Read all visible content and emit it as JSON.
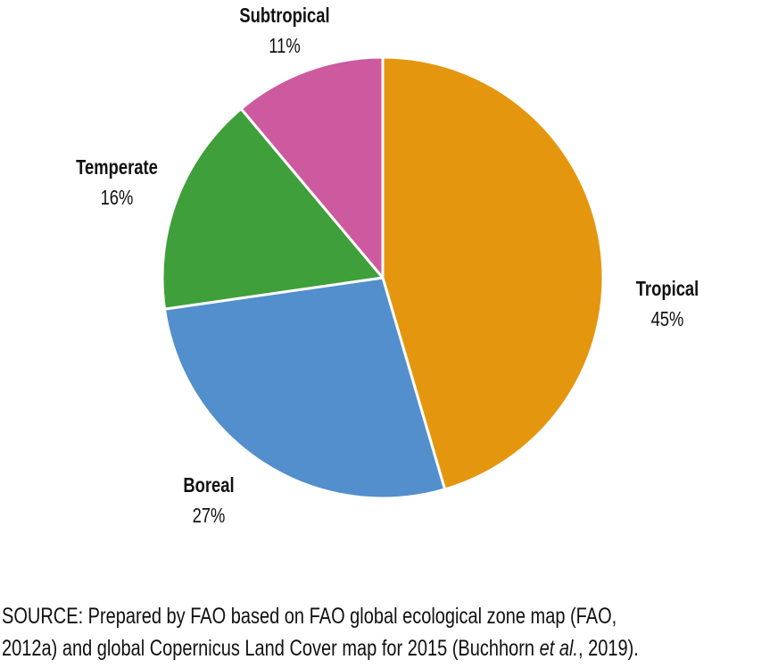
{
  "chart_data": {
    "type": "pie",
    "title": "",
    "start": "top",
    "direction": "clockwise",
    "slices": [
      {
        "label": "Tropical",
        "value": 45,
        "display": "45%",
        "color": "#E5960F"
      },
      {
        "label": "Boreal",
        "value": 27,
        "display": "27%",
        "color": "#528FCC"
      },
      {
        "label": "Temperate",
        "value": 16,
        "display": "16%",
        "color": "#3F9F3A"
      },
      {
        "label": "Subtropical",
        "value": 11,
        "display": "11%",
        "color": "#CD5A9E"
      }
    ]
  },
  "source": {
    "line1": "SOURCE: Prepared by FAO based on FAO global ecological zone map (FAO,",
    "line2_pre": "2012a) and global Copernicus Land Cover map for 2015 (Buchhorn ",
    "line2_italic": "et al.",
    "line2_post": ", 2019)."
  }
}
